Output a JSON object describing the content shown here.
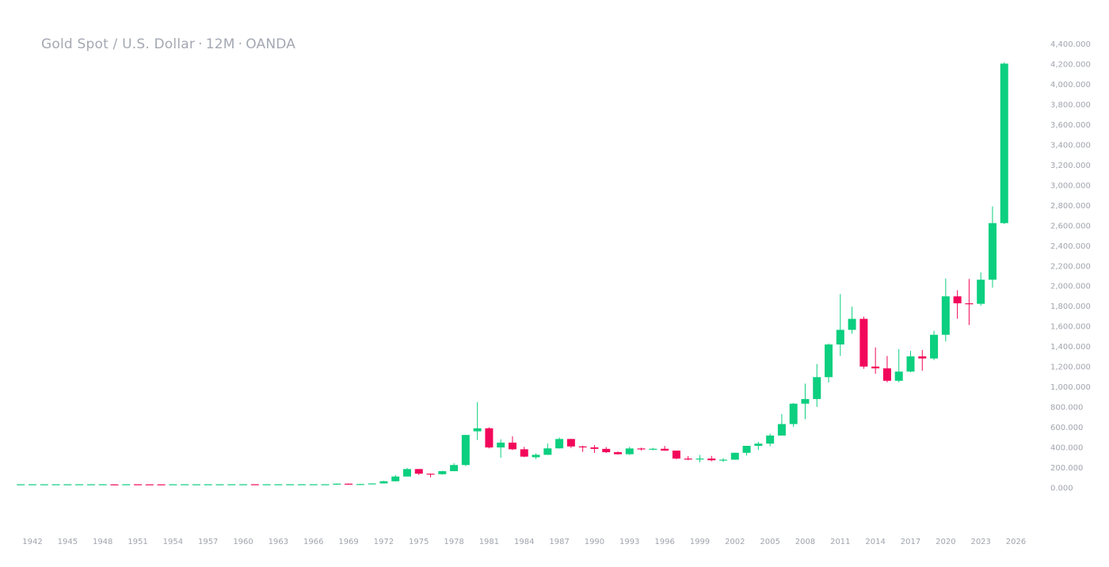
{
  "header": {
    "symbol": "Gold Spot / U.S. Dollar",
    "interval": "12M",
    "source": "OANDA",
    "separator": "·"
  },
  "colors": {
    "up": "#0ccf7f",
    "down": "#f2085a",
    "axis_text": "#a0a4ad",
    "title_text": "#a3a8b2"
  },
  "chart_data": {
    "type": "candlestick",
    "title": "Gold Spot / U.S. Dollar · 12M · OANDA",
    "xlabel": "",
    "ylabel": "",
    "ylim": [
      0,
      4400
    ],
    "grid": false,
    "legend": "none",
    "y_ticks": [
      "0.000",
      "200.000",
      "400.000",
      "600.000",
      "800.000",
      "1,000.000",
      "1,200.000",
      "1,400.000",
      "1,600.000",
      "1,800.000",
      "2,000.000",
      "2,200.000",
      "2,400.000",
      "2,600.000",
      "2,800.000",
      "3,000.000",
      "3,200.000",
      "3,400.000",
      "3,600.000",
      "3,800.000",
      "4,000.000",
      "4,200.000",
      "4,400.000"
    ],
    "x_ticks": [
      "1942",
      "1945",
      "1948",
      "1951",
      "1954",
      "1957",
      "1960",
      "1963",
      "1966",
      "1969",
      "1972",
      "1975",
      "1978",
      "1981",
      "1984",
      "1987",
      "1990",
      "1993",
      "1996",
      "1999",
      "2002",
      "2005",
      "2008",
      "2011",
      "2014",
      "2017",
      "2020",
      "2023",
      "2026"
    ],
    "candles": [
      {
        "year": 1941,
        "o": 35,
        "h": 35,
        "l": 35,
        "c": 35
      },
      {
        "year": 1942,
        "o": 35,
        "h": 35,
        "l": 35,
        "c": 35
      },
      {
        "year": 1943,
        "o": 35,
        "h": 35,
        "l": 35,
        "c": 35
      },
      {
        "year": 1944,
        "o": 35,
        "h": 35,
        "l": 35,
        "c": 35
      },
      {
        "year": 1945,
        "o": 35,
        "h": 35,
        "l": 35,
        "c": 35
      },
      {
        "year": 1946,
        "o": 35,
        "h": 35,
        "l": 35,
        "c": 35
      },
      {
        "year": 1947,
        "o": 35,
        "h": 35,
        "l": 35,
        "c": 35
      },
      {
        "year": 1948,
        "o": 35,
        "h": 35,
        "l": 34,
        "c": 35
      },
      {
        "year": 1949,
        "o": 34,
        "h": 35,
        "l": 32,
        "c": 33
      },
      {
        "year": 1950,
        "o": 33,
        "h": 35,
        "l": 33,
        "c": 35
      },
      {
        "year": 1951,
        "o": 35,
        "h": 35,
        "l": 34,
        "c": 34.5
      },
      {
        "year": 1952,
        "o": 34.5,
        "h": 35,
        "l": 34,
        "c": 34.3
      },
      {
        "year": 1953,
        "o": 34.3,
        "h": 35,
        "l": 34,
        "c": 34
      },
      {
        "year": 1954,
        "o": 34,
        "h": 35,
        "l": 34,
        "c": 35
      },
      {
        "year": 1955,
        "o": 35,
        "h": 35,
        "l": 34.8,
        "c": 35
      },
      {
        "year": 1956,
        "o": 35,
        "h": 35.2,
        "l": 34.8,
        "c": 35
      },
      {
        "year": 1957,
        "o": 35,
        "h": 35.2,
        "l": 34.8,
        "c": 35
      },
      {
        "year": 1958,
        "o": 35,
        "h": 35.2,
        "l": 34.8,
        "c": 35.1
      },
      {
        "year": 1959,
        "o": 35.1,
        "h": 35.3,
        "l": 34.8,
        "c": 35.2
      },
      {
        "year": 1960,
        "o": 35.2,
        "h": 36,
        "l": 34.8,
        "c": 35.3
      },
      {
        "year": 1961,
        "o": 35.3,
        "h": 35.6,
        "l": 34.8,
        "c": 35.1
      },
      {
        "year": 1962,
        "o": 35.1,
        "h": 35.4,
        "l": 34.8,
        "c": 35.1
      },
      {
        "year": 1963,
        "o": 35.1,
        "h": 35.3,
        "l": 34.8,
        "c": 35.1
      },
      {
        "year": 1964,
        "o": 35.1,
        "h": 35.3,
        "l": 34.8,
        "c": 35.1
      },
      {
        "year": 1965,
        "o": 35.1,
        "h": 35.3,
        "l": 34.8,
        "c": 35.1
      },
      {
        "year": 1966,
        "o": 35.1,
        "h": 35.3,
        "l": 34.8,
        "c": 35.2
      },
      {
        "year": 1967,
        "o": 35.2,
        "h": 35.4,
        "l": 34.8,
        "c": 35.2
      },
      {
        "year": 1968,
        "o": 35.2,
        "h": 43,
        "l": 35,
        "c": 41
      },
      {
        "year": 1969,
        "o": 41,
        "h": 43,
        "l": 35,
        "c": 35.2
      },
      {
        "year": 1970,
        "o": 35.2,
        "h": 39,
        "l": 34.5,
        "c": 37.4
      },
      {
        "year": 1971,
        "o": 37.4,
        "h": 44,
        "l": 37,
        "c": 43.5
      },
      {
        "year": 1972,
        "o": 43.5,
        "h": 70,
        "l": 43,
        "c": 65
      },
      {
        "year": 1973,
        "o": 65,
        "h": 127,
        "l": 63,
        "c": 112
      },
      {
        "year": 1974,
        "o": 112,
        "h": 197,
        "l": 112,
        "c": 186
      },
      {
        "year": 1975,
        "o": 186,
        "h": 186,
        "l": 128,
        "c": 140
      },
      {
        "year": 1976,
        "o": 140,
        "h": 140,
        "l": 104,
        "c": 135
      },
      {
        "year": 1977,
        "o": 135,
        "h": 168,
        "l": 130,
        "c": 165
      },
      {
        "year": 1978,
        "o": 165,
        "h": 245,
        "l": 165,
        "c": 226
      },
      {
        "year": 1979,
        "o": 226,
        "h": 524,
        "l": 216,
        "c": 524
      },
      {
        "year": 1980,
        "o": 560,
        "h": 850,
        "l": 474,
        "c": 590
      },
      {
        "year": 1981,
        "o": 590,
        "h": 600,
        "l": 391,
        "c": 400
      },
      {
        "year": 1982,
        "o": 400,
        "h": 481,
        "l": 297,
        "c": 448
      },
      {
        "year": 1983,
        "o": 448,
        "h": 510,
        "l": 374,
        "c": 382
      },
      {
        "year": 1984,
        "o": 382,
        "h": 406,
        "l": 304,
        "c": 309
      },
      {
        "year": 1985,
        "o": 303,
        "h": 341,
        "l": 285,
        "c": 327
      },
      {
        "year": 1986,
        "o": 327,
        "h": 439,
        "l": 326,
        "c": 391
      },
      {
        "year": 1987,
        "o": 391,
        "h": 499,
        "l": 390,
        "c": 484
      },
      {
        "year": 1988,
        "o": 484,
        "h": 485,
        "l": 395,
        "c": 410
      },
      {
        "year": 1989,
        "o": 410,
        "h": 418,
        "l": 356,
        "c": 401
      },
      {
        "year": 1990,
        "o": 401,
        "h": 424,
        "l": 345,
        "c": 386
      },
      {
        "year": 1991,
        "o": 386,
        "h": 404,
        "l": 344,
        "c": 353
      },
      {
        "year": 1992,
        "o": 353,
        "h": 360,
        "l": 330,
        "c": 333
      },
      {
        "year": 1993,
        "o": 333,
        "h": 406,
        "l": 326,
        "c": 390
      },
      {
        "year": 1994,
        "o": 390,
        "h": 398,
        "l": 370,
        "c": 383
      },
      {
        "year": 1995,
        "o": 383,
        "h": 396,
        "l": 372,
        "c": 387
      },
      {
        "year": 1996,
        "o": 387,
        "h": 415,
        "l": 367,
        "c": 369
      },
      {
        "year": 1997,
        "o": 369,
        "h": 367,
        "l": 283,
        "c": 290
      },
      {
        "year": 1998,
        "o": 290,
        "h": 314,
        "l": 273,
        "c": 288
      },
      {
        "year": 1999,
        "o": 288,
        "h": 326,
        "l": 253,
        "c": 290
      },
      {
        "year": 2000,
        "o": 290,
        "h": 316,
        "l": 263,
        "c": 273
      },
      {
        "year": 2001,
        "o": 273,
        "h": 293,
        "l": 256,
        "c": 279
      },
      {
        "year": 2002,
        "o": 279,
        "h": 349,
        "l": 277,
        "c": 347
      },
      {
        "year": 2003,
        "o": 347,
        "h": 416,
        "l": 320,
        "c": 416
      },
      {
        "year": 2004,
        "o": 416,
        "h": 456,
        "l": 375,
        "c": 438
      },
      {
        "year": 2005,
        "o": 438,
        "h": 537,
        "l": 411,
        "c": 518
      },
      {
        "year": 2006,
        "o": 518,
        "h": 730,
        "l": 520,
        "c": 632
      },
      {
        "year": 2007,
        "o": 632,
        "h": 841,
        "l": 603,
        "c": 834
      },
      {
        "year": 2008,
        "o": 834,
        "h": 1033,
        "l": 681,
        "c": 880
      },
      {
        "year": 2009,
        "o": 880,
        "h": 1227,
        "l": 802,
        "c": 1097
      },
      {
        "year": 2010,
        "o": 1097,
        "h": 1431,
        "l": 1044,
        "c": 1421
      },
      {
        "year": 2011,
        "o": 1421,
        "h": 1921,
        "l": 1308,
        "c": 1566
      },
      {
        "year": 2012,
        "o": 1566,
        "h": 1795,
        "l": 1527,
        "c": 1675
      },
      {
        "year": 2013,
        "o": 1675,
        "h": 1696,
        "l": 1180,
        "c": 1202
      },
      {
        "year": 2014,
        "o": 1202,
        "h": 1392,
        "l": 1131,
        "c": 1184
      },
      {
        "year": 2015,
        "o": 1184,
        "h": 1307,
        "l": 1046,
        "c": 1061
      },
      {
        "year": 2016,
        "o": 1061,
        "h": 1375,
        "l": 1046,
        "c": 1152
      },
      {
        "year": 2017,
        "o": 1152,
        "h": 1358,
        "l": 1146,
        "c": 1303
      },
      {
        "year": 2018,
        "o": 1303,
        "h": 1366,
        "l": 1160,
        "c": 1282
      },
      {
        "year": 2019,
        "o": 1282,
        "h": 1557,
        "l": 1266,
        "c": 1517
      },
      {
        "year": 2020,
        "o": 1517,
        "h": 2075,
        "l": 1451,
        "c": 1898
      },
      {
        "year": 2021,
        "o": 1898,
        "h": 1959,
        "l": 1676,
        "c": 1829
      },
      {
        "year": 2022,
        "o": 1829,
        "h": 2070,
        "l": 1614,
        "c": 1824
      },
      {
        "year": 2023,
        "o": 1824,
        "h": 2135,
        "l": 1804,
        "c": 2063
      },
      {
        "year": 2024,
        "o": 2063,
        "h": 2790,
        "l": 1984,
        "c": 2624
      },
      {
        "year": 2025,
        "o": 2624,
        "h": 4218,
        "l": 2615,
        "c": 4205
      }
    ]
  }
}
